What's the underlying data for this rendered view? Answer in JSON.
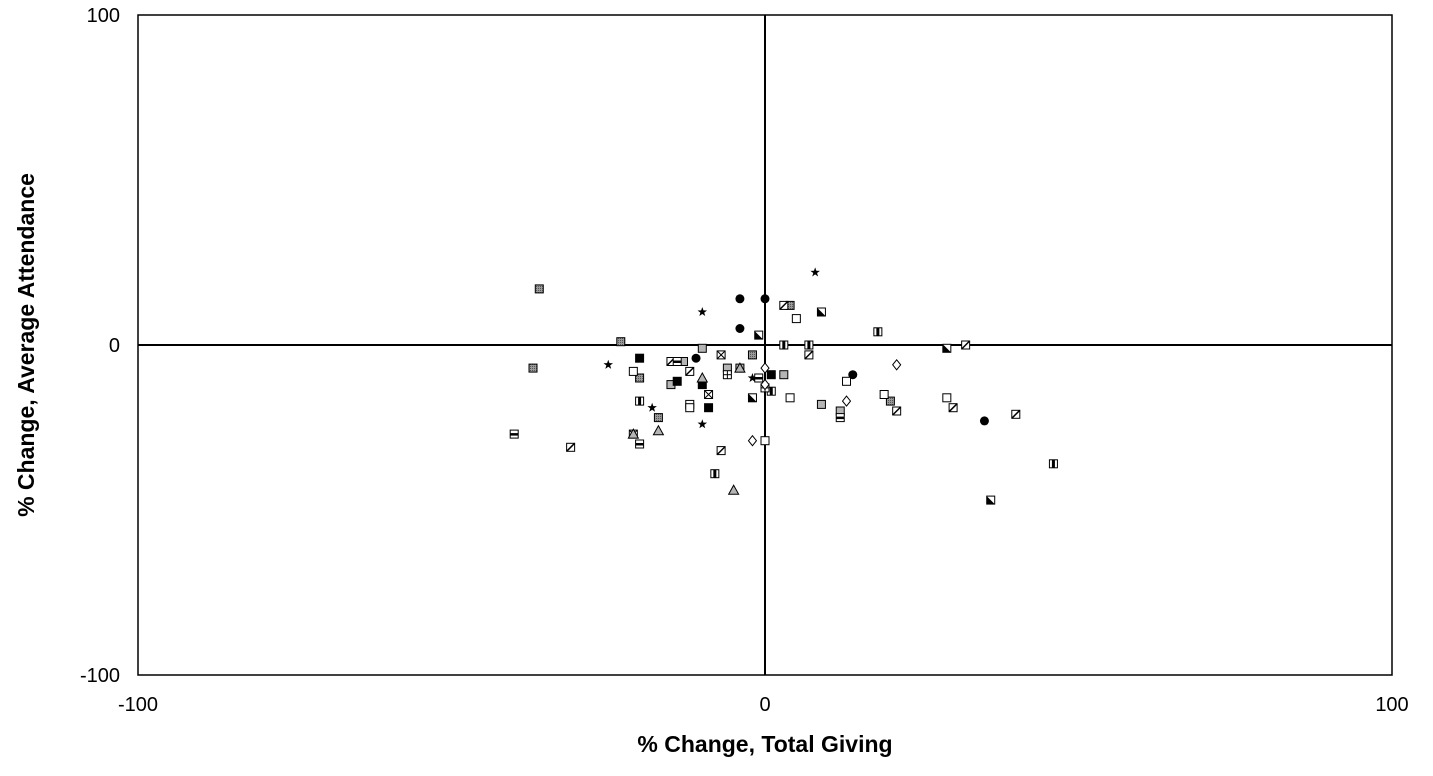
{
  "chart_data": {
    "type": "scatter",
    "title": "",
    "xlabel": "% Change, Total Giving",
    "ylabel": "% Change, Average Attendance",
    "xlim": [
      -100,
      100
    ],
    "ylim": [
      -100,
      100
    ],
    "x_ticks": [
      "-100",
      "0",
      "100"
    ],
    "y_ticks": [
      "100",
      "0",
      "-100"
    ],
    "grid": false,
    "legend": "none",
    "zero_lines": true,
    "colors": {
      "stroke": "#000000",
      "fill_grey": "#b5b5b5",
      "fill_dark": "#000000",
      "fill_white": "#ffffff"
    },
    "series": [
      {
        "marker": "square-hatch",
        "points": [
          [
            -36,
            17
          ],
          [
            -37,
            -7
          ],
          [
            -23,
            1
          ],
          [
            -20,
            -10
          ],
          [
            -17,
            -22
          ],
          [
            -2,
            -3
          ],
          [
            4,
            12
          ],
          [
            20,
            -17
          ]
        ]
      },
      {
        "marker": "circle",
        "points": [
          [
            -4,
            14
          ],
          [
            0,
            14
          ],
          [
            -4,
            5
          ],
          [
            -11,
            -4
          ],
          [
            14,
            -9
          ],
          [
            35,
            -23
          ]
        ]
      },
      {
        "marker": "star",
        "points": [
          [
            8,
            22
          ],
          [
            -10,
            10
          ],
          [
            -25,
            -6
          ],
          [
            -18,
            -19
          ],
          [
            -10,
            -24
          ],
          [
            -2,
            -10
          ]
        ]
      },
      {
        "marker": "square-grey",
        "points": [
          [
            -4,
            -7
          ],
          [
            -10,
            -1
          ],
          [
            -15,
            -12
          ],
          [
            -6,
            -7
          ],
          [
            -13,
            -5
          ],
          [
            3,
            -9
          ],
          [
            9,
            -18
          ],
          [
            12,
            -20
          ]
        ]
      },
      {
        "marker": "square-white",
        "points": [
          [
            -21,
            -8
          ],
          [
            -12,
            -18
          ],
          [
            -12,
            -19
          ],
          [
            13,
            -11
          ],
          [
            5,
            8
          ],
          [
            4,
            -16
          ],
          [
            19,
            -15
          ],
          [
            29,
            -16
          ]
        ]
      },
      {
        "marker": "square-black",
        "points": [
          [
            -20,
            -4
          ],
          [
            -14,
            -11
          ],
          [
            -10,
            -12
          ],
          [
            -9,
            -19
          ],
          [
            1,
            -9
          ]
        ]
      },
      {
        "marker": "square-diag",
        "points": [
          [
            -31,
            -31
          ],
          [
            -15,
            -5
          ],
          [
            -12,
            -8
          ],
          [
            -7,
            -32
          ],
          [
            3,
            12
          ],
          [
            7,
            -3
          ],
          [
            21,
            -20
          ],
          [
            30,
            -19
          ],
          [
            32,
            0
          ],
          [
            40,
            -21
          ]
        ]
      },
      {
        "marker": "square-backdiag",
        "points": [
          [
            -2,
            -16
          ],
          [
            -1,
            3
          ],
          [
            9,
            10
          ],
          [
            29,
            -1
          ],
          [
            36,
            -47
          ]
        ]
      },
      {
        "marker": "square-vbar",
        "points": [
          [
            -20,
            -17
          ],
          [
            -8,
            -39
          ],
          [
            1,
            -14
          ],
          [
            3,
            0
          ],
          [
            7,
            0
          ],
          [
            18,
            4
          ],
          [
            46,
            -36
          ]
        ]
      },
      {
        "marker": "square-hbar",
        "points": [
          [
            -40,
            -27
          ],
          [
            -20,
            -30
          ],
          [
            -14,
            -5
          ],
          [
            12,
            -22
          ],
          [
            -1,
            -10
          ]
        ]
      },
      {
        "marker": "square-x",
        "points": [
          [
            -21,
            -27
          ],
          [
            -7,
            -3
          ],
          [
            -9,
            -15
          ]
        ]
      },
      {
        "marker": "square-plus",
        "points": [
          [
            -6,
            -9
          ],
          [
            0,
            -13
          ]
        ]
      },
      {
        "marker": "square-empty",
        "points": [
          [
            0,
            -29
          ]
        ]
      },
      {
        "marker": "triangle",
        "points": [
          [
            -21,
            -27
          ],
          [
            -17,
            -26
          ],
          [
            -10,
            -10
          ],
          [
            -4,
            -7
          ],
          [
            -5,
            -44
          ]
        ]
      },
      {
        "marker": "diamond",
        "points": [
          [
            -2,
            -29
          ],
          [
            13,
            -17
          ],
          [
            21,
            -6
          ],
          [
            0,
            -7
          ],
          [
            0,
            -12
          ]
        ]
      }
    ]
  }
}
